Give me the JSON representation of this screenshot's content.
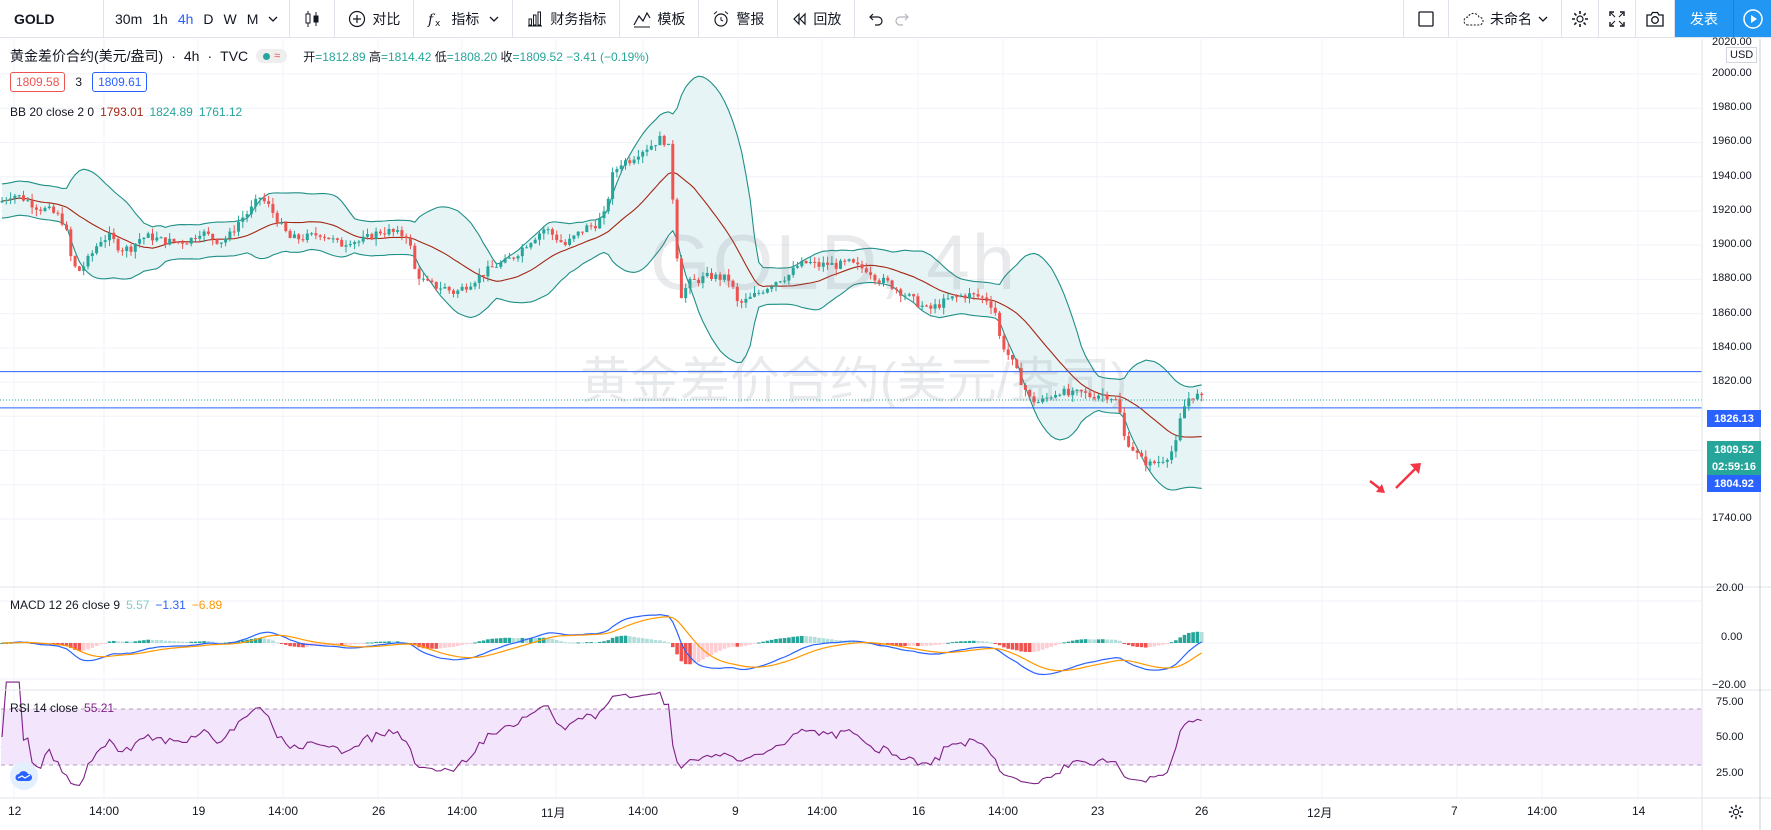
{
  "toolbar": {
    "symbol": "GOLD",
    "intervals": [
      "30m",
      "1h",
      "4h",
      "D",
      "W",
      "M"
    ],
    "active_interval": "4h",
    "compare_label": "对比",
    "indicators_label": "指标",
    "financials_label": "财务指标",
    "templates_label": "模板",
    "alert_label": "警报",
    "replay_label": "回放",
    "layout_name": "未命名",
    "publish_label": "发表"
  },
  "legend": {
    "title": "黄金差价合约(美元/盎司)",
    "interval": "4h",
    "source": "TVC",
    "ohlc": {
      "o_label": "开",
      "o": "1812.89",
      "h_label": "高",
      "h": "1814.42",
      "l_label": "低",
      "l": "1808.20",
      "c_label": "收",
      "c": "1809.52",
      "change": "−3.41 (−0.19%)"
    },
    "bid": "1809.58",
    "spread": "3",
    "ask": "1809.61",
    "bb": {
      "name": "BB 20 close 2 0",
      "basis": "1793.01",
      "upper": "1824.89",
      "lower": "1761.12"
    }
  },
  "macd_legend": {
    "name": "MACD 12 26 close 9",
    "hist": "5.57",
    "macd": "−1.31",
    "signal": "−6.89"
  },
  "rsi_legend": {
    "name": "RSI 14 close",
    "value": "55.21"
  },
  "watermark": {
    "line1": "GOLD, 4h",
    "line2": "黄金差价合约(美元/盎司)"
  },
  "price_axis": {
    "currency": "USD",
    "top_partial": "2020.00",
    "ticks": [
      "2000.00",
      "1980.00",
      "1960.00",
      "1940.00",
      "1920.00",
      "1900.00",
      "1880.00",
      "1860.00",
      "1840.00",
      "1820.00",
      "1800.00",
      "1780.00",
      "1760.00",
      "1740.00"
    ],
    "tags": {
      "line_upper": "1826.13",
      "last": "1809.52",
      "countdown": "02:59:16",
      "line_lower": "1804.92"
    }
  },
  "macd_axis": {
    "ticks": [
      "20.00",
      "0.00",
      "−20.00"
    ]
  },
  "rsi_axis": {
    "ticks": [
      "75.00",
      "50.00",
      "25.00"
    ]
  },
  "time_axis": {
    "labels": [
      "12",
      "14:00",
      "19",
      "14:00",
      "26",
      "14:00",
      "11月",
      "14:00",
      "9",
      "14:00",
      "16",
      "14:00",
      "23",
      "26",
      "12月",
      "7",
      "14:00",
      "14"
    ]
  },
  "horizontal_lines": [
    1826.13,
    1804.92
  ],
  "colors": {
    "up": "#26a69a",
    "down": "#ef5350",
    "bb_fill": "#e6f4f5",
    "bb_band": "#1f8f86",
    "bb_basis": "#a52714",
    "macd_line": "#2962ff",
    "signal_line": "#ff9800",
    "rsi_line": "#7e1f86",
    "rsi_band": "#f3e5fb",
    "hline": "#2962ff"
  },
  "chart_data": {
    "type": "candlestick",
    "timeframe": "4h",
    "ylim": [
      1740,
      2020
    ],
    "current": 1809.52,
    "close_path": [
      [
        0,
        1925
      ],
      [
        12,
        1930
      ],
      [
        25,
        1927
      ],
      [
        38,
        1922
      ],
      [
        50,
        1920
      ],
      [
        61,
        1916
      ],
      [
        68,
        1905
      ],
      [
        72,
        1888
      ],
      [
        80,
        1885
      ],
      [
        90,
        1893
      ],
      [
        100,
        1903
      ],
      [
        110,
        1905
      ],
      [
        120,
        1898
      ],
      [
        130,
        1898
      ],
      [
        140,
        1904
      ],
      [
        150,
        1905
      ],
      [
        160,
        1903
      ],
      [
        170,
        1902
      ],
      [
        180,
        1902
      ],
      [
        190,
        1903
      ],
      [
        200,
        1908
      ],
      [
        210,
        1905
      ],
      [
        220,
        1902
      ],
      [
        230,
        1906
      ],
      [
        240,
        1915
      ],
      [
        250,
        1920
      ],
      [
        260,
        1928
      ],
      [
        270,
        1922
      ],
      [
        280,
        1912
      ],
      [
        290,
        1904
      ],
      [
        300,
        1904
      ],
      [
        310,
        1905
      ],
      [
        320,
        1907
      ],
      [
        330,
        1904
      ],
      [
        340,
        1900
      ],
      [
        350,
        1903
      ],
      [
        360,
        1902
      ],
      [
        370,
        1905
      ],
      [
        380,
        1908
      ],
      [
        390,
        1908
      ],
      [
        400,
        1906
      ],
      [
        408,
        1906
      ],
      [
        415,
        1885
      ],
      [
        425,
        1878
      ],
      [
        435,
        1876
      ],
      [
        445,
        1875
      ],
      [
        455,
        1872
      ],
      [
        465,
        1876
      ],
      [
        475,
        1880
      ],
      [
        485,
        1884
      ],
      [
        495,
        1888
      ],
      [
        505,
        1890
      ],
      [
        515,
        1894
      ],
      [
        525,
        1900
      ],
      [
        535,
        1905
      ],
      [
        545,
        1910
      ],
      [
        555,
        1905
      ],
      [
        565,
        1900
      ],
      [
        575,
        1905
      ],
      [
        585,
        1910
      ],
      [
        595,
        1912
      ],
      [
        605,
        1918
      ],
      [
        612,
        1940
      ],
      [
        620,
        1948
      ],
      [
        630,
        1950
      ],
      [
        640,
        1955
      ],
      [
        650,
        1958
      ],
      [
        660,
        1962
      ],
      [
        668,
        1960
      ],
      [
        674,
        1920
      ],
      [
        680,
        1870
      ],
      [
        690,
        1878
      ],
      [
        700,
        1880
      ],
      [
        710,
        1882
      ],
      [
        720,
        1881
      ],
      [
        730,
        1880
      ],
      [
        738,
        1865
      ],
      [
        748,
        1868
      ],
      [
        758,
        1872
      ],
      [
        768,
        1876
      ],
      [
        778,
        1880
      ],
      [
        788,
        1882
      ],
      [
        798,
        1888
      ],
      [
        808,
        1890
      ],
      [
        818,
        1888
      ],
      [
        828,
        1889
      ],
      [
        838,
        1888
      ],
      [
        848,
        1890
      ],
      [
        858,
        1887
      ],
      [
        868,
        1886
      ],
      [
        878,
        1880
      ],
      [
        888,
        1878
      ],
      [
        898,
        1874
      ],
      [
        908,
        1870
      ],
      [
        918,
        1866
      ],
      [
        928,
        1862
      ],
      [
        938,
        1865
      ],
      [
        948,
        1868
      ],
      [
        958,
        1870
      ],
      [
        968,
        1871
      ],
      [
        978,
        1870
      ],
      [
        988,
        1868
      ],
      [
        995,
        1862
      ],
      [
        1000,
        1845
      ],
      [
        1010,
        1834
      ],
      [
        1020,
        1822
      ],
      [
        1030,
        1810
      ],
      [
        1040,
        1808
      ],
      [
        1050,
        1812
      ],
      [
        1060,
        1815
      ],
      [
        1070,
        1812
      ],
      [
        1080,
        1814
      ],
      [
        1090,
        1812
      ],
      [
        1100,
        1813
      ],
      [
        1110,
        1812
      ],
      [
        1118,
        1808
      ],
      [
        1124,
        1788
      ],
      [
        1132,
        1782
      ],
      [
        1140,
        1775
      ],
      [
        1150,
        1772
      ],
      [
        1160,
        1774
      ],
      [
        1170,
        1778
      ],
      [
        1176,
        1784
      ],
      [
        1182,
        1803
      ],
      [
        1190,
        1812
      ],
      [
        1197,
        1812
      ],
      [
        1203,
        1809.52
      ]
    ]
  }
}
